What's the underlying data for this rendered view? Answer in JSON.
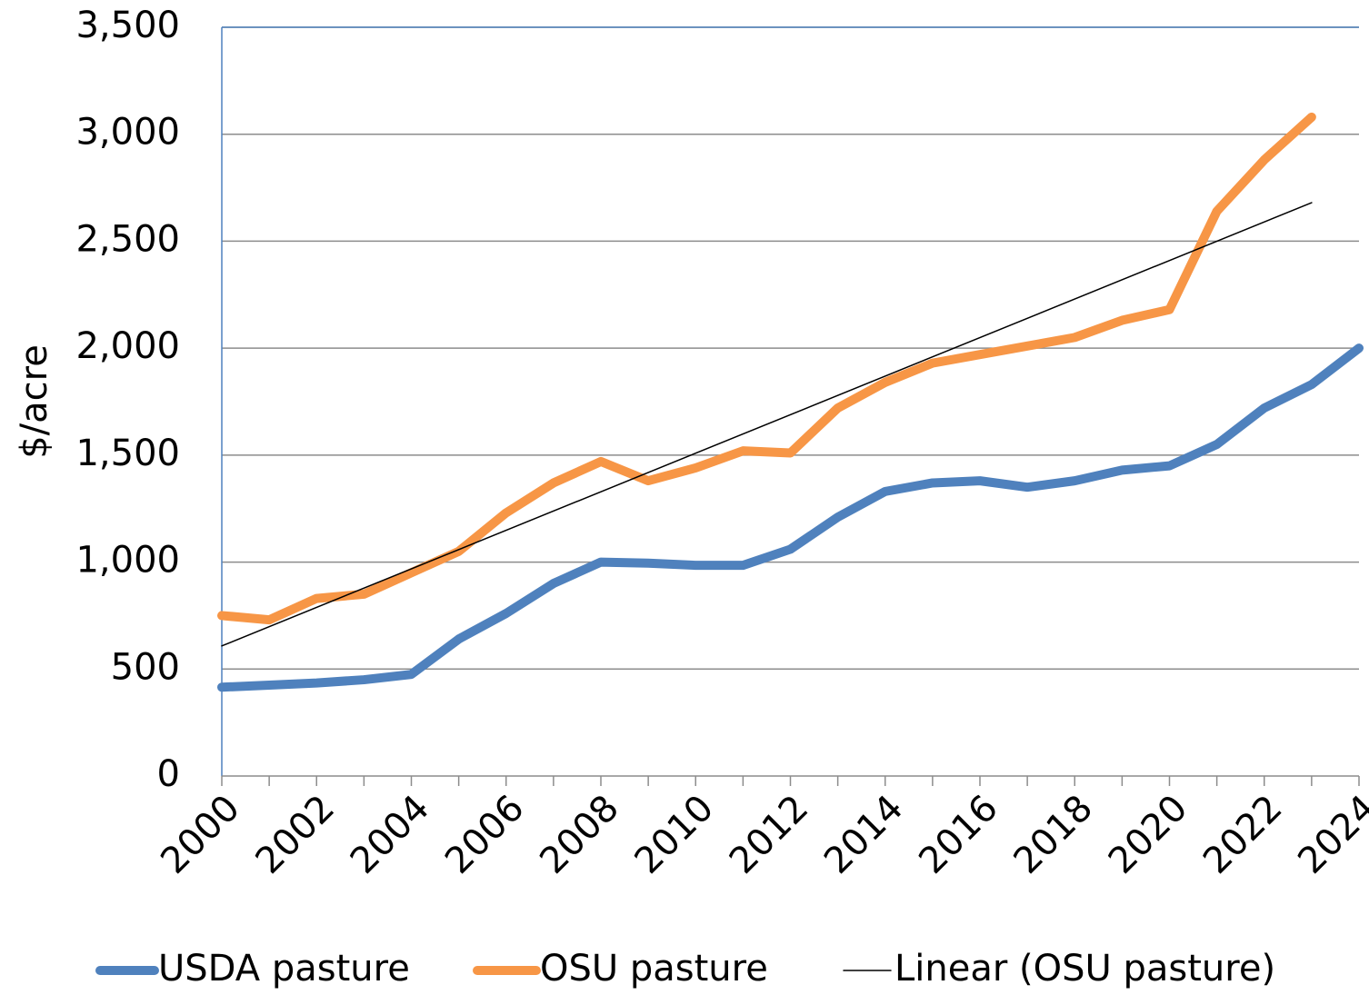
{
  "chart_data": {
    "type": "line",
    "y_label": "$/acre",
    "x": [
      2000,
      2001,
      2002,
      2003,
      2004,
      2005,
      2006,
      2007,
      2008,
      2009,
      2010,
      2011,
      2012,
      2013,
      2014,
      2015,
      2016,
      2017,
      2018,
      2019,
      2020,
      2021,
      2022,
      2023,
      2024
    ],
    "series": [
      {
        "name": "USDA pasture",
        "color": "#4f81bd",
        "width": 10,
        "values": [
          415,
          425,
          435,
          450,
          475,
          640,
          760,
          900,
          1000,
          995,
          985,
          985,
          1060,
          1210,
          1330,
          1370,
          1380,
          1350,
          1380,
          1430,
          1450,
          1550,
          1720,
          1830,
          2000
        ]
      },
      {
        "name": "OSU pasture",
        "color": "#f79646",
        "width": 10,
        "values": [
          750,
          730,
          830,
          850,
          950,
          1050,
          1230,
          1370,
          1470,
          1380,
          1440,
          1520,
          1510,
          1720,
          1840,
          1930,
          1970,
          2010,
          2050,
          2130,
          2180,
          2640,
          2880,
          3080,
          null
        ]
      },
      {
        "name": "Linear (OSU pasture)",
        "color": "#000000",
        "width": 1.5,
        "x": [
          2000,
          2023
        ],
        "values": [
          608,
          2680
        ]
      }
    ],
    "xlim": [
      2000,
      2024
    ],
    "xticks": [
      2000,
      2002,
      2004,
      2006,
      2008,
      2010,
      2012,
      2014,
      2016,
      2018,
      2020,
      2022,
      2024
    ],
    "ylim": [
      0,
      3500
    ],
    "yticks": [
      0,
      {
        "value": 500,
        "label": "500"
      },
      {
        "value": 1000,
        "label": "1,000"
      },
      {
        "value": 1500,
        "label": "1,500"
      },
      {
        "value": 2000,
        "label": "2,000"
      },
      {
        "value": 2500,
        "label": "2,500"
      },
      {
        "value": 3000,
        "label": "3,000"
      },
      {
        "value": 3500,
        "label": "3,500"
      }
    ],
    "grid": true,
    "legend": "bottom"
  }
}
